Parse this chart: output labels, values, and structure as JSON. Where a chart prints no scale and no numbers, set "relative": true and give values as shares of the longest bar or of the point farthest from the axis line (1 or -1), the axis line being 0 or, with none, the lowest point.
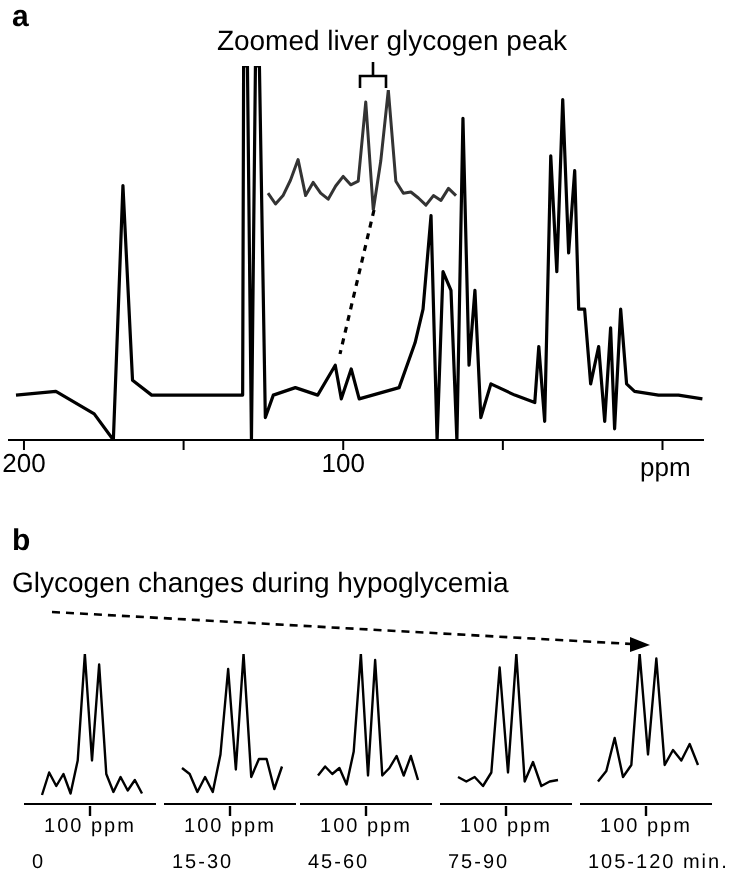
{
  "chart_data": [
    {
      "type": "line",
      "annotations": [
        "a"
      ],
      "relative": true,
      "color": "#000000",
      "xlabel": "ppm",
      "xlim": [
        205,
        -13
      ],
      "xticks": [
        200,
        {
          "value": 150,
          "label": null
        },
        100,
        {
          "value": 50,
          "label": null
        },
        {
          "value": 0,
          "label": null
        }
      ],
      "x": [
        202.5,
        190,
        178,
        172,
        169,
        166,
        160,
        145,
        131.5,
        131.2,
        130,
        128.75,
        127.5,
        126.25,
        124.4,
        121.9,
        115,
        108,
        102.5,
        100.6,
        97.5,
        95,
        82.5,
        77.5,
        75,
        72.5,
        70.6,
        68.75,
        66.25,
        64.4,
        62.5,
        60.6,
        58.75,
        56.9,
        53.75,
        46.25,
        40,
        38.75,
        36.9,
        35,
        33.1,
        31.25,
        29.4,
        27.5,
        26.25,
        24.4,
        22.5,
        20,
        18.1,
        16.25,
        15,
        13.1,
        11.25,
        8.75,
        1.25,
        -5,
        -12.5
      ],
      "values": [
        0.12,
        0.13,
        0.07,
        0,
        0.68,
        0.16,
        0.12,
        0.12,
        0.12,
        1,
        1,
        0,
        1,
        1,
        0.06,
        0.12,
        0.14,
        0.12,
        0.2,
        0.11,
        0.19,
        0.11,
        0.14,
        0.26,
        0.35,
        0.6,
        0,
        0.45,
        0.4,
        0,
        0.86,
        0.2,
        0.4,
        0.06,
        0.15,
        0.12,
        0.1,
        0.25,
        0.05,
        0.76,
        0.45,
        0.91,
        0.5,
        0.72,
        0.35,
        0.35,
        0.15,
        0.25,
        0.05,
        0.3,
        0.03,
        0.35,
        0.15,
        0.13,
        0.12,
        0.12,
        0.11
      ]
    },
    {
      "type": "line",
      "title": "Zoomed liver glycogen peak",
      "relative": true,
      "color": "#333333",
      "categories": [
        null,
        null,
        null,
        null,
        null,
        null,
        null,
        null,
        null,
        null,
        null,
        null,
        null,
        null,
        null,
        null,
        null,
        null,
        null,
        null,
        null,
        null,
        null,
        null,
        null,
        null
      ],
      "values": [
        0.14,
        0.05,
        0.12,
        0.25,
        0.42,
        0.12,
        0.23,
        0.14,
        0.09,
        0.2,
        0.28,
        0.21,
        0.24,
        0.9,
        0,
        0.41,
        1,
        0.24,
        0.14,
        0.15,
        0.1,
        0.04,
        0.12,
        0.08,
        0.18,
        0.12
      ]
    },
    {
      "type": "line",
      "title": "Glycogen changes during hypoglycemia",
      "annotations": [
        "b",
        "100 ppm"
      ],
      "relative": true,
      "color": "#000000",
      "xlabel": "0",
      "categories": [
        null,
        null,
        null,
        null,
        null,
        null,
        null,
        null,
        null,
        null,
        null,
        null,
        null,
        null,
        null
      ],
      "values": [
        0.06,
        0.21,
        0.12,
        0.2,
        0.07,
        0.29,
        1,
        0.29,
        0.93,
        0.2,
        0.08,
        0.18,
        0.09,
        0.16,
        0.07
      ]
    },
    {
      "type": "line",
      "annotations": [
        "100 ppm"
      ],
      "relative": true,
      "color": "#000000",
      "xlabel": "15-30",
      "categories": [
        null,
        null,
        null,
        null,
        null,
        null,
        null,
        null,
        null,
        null,
        null,
        null,
        null,
        null
      ],
      "values": [
        0.24,
        0.2,
        0.08,
        0.18,
        0.08,
        0.33,
        0.9,
        0.23,
        1,
        0.18,
        0.3,
        0.3,
        0.1,
        0.25
      ]
    },
    {
      "type": "line",
      "annotations": [
        "100 ppm"
      ],
      "relative": true,
      "color": "#000000",
      "xlabel": "45-60",
      "categories": [
        null,
        null,
        null,
        null,
        null,
        null,
        null,
        null,
        null,
        null,
        null,
        null,
        null,
        null,
        null
      ],
      "values": [
        0.19,
        0.25,
        0.2,
        0.24,
        0.13,
        0.35,
        1,
        0.19,
        0.96,
        0.19,
        0.24,
        0.32,
        0.19,
        0.32,
        0.16
      ]
    },
    {
      "type": "line",
      "annotations": [
        "100 ppm"
      ],
      "relative": true,
      "color": "#000000",
      "xlabel": "75-90",
      "categories": [
        null,
        null,
        null,
        null,
        null,
        null,
        null,
        null,
        null,
        null,
        null,
        null,
        null
      ],
      "values": [
        0.18,
        0.15,
        0.18,
        0.12,
        0.21,
        0.91,
        0.21,
        1,
        0.15,
        0.28,
        0.12,
        0.15,
        0.16
      ]
    },
    {
      "type": "line",
      "annotations": [
        "100 ppm"
      ],
      "relative": true,
      "color": "#000000",
      "xlabel": "105-120 min.",
      "categories": [
        null,
        null,
        null,
        null,
        null,
        null,
        null,
        null,
        null,
        null,
        null,
        null,
        null
      ],
      "values": [
        0.15,
        0.22,
        0.44,
        0.18,
        0.26,
        1,
        0.33,
        0.97,
        0.26,
        0.36,
        0.29,
        0.4,
        0.26
      ]
    }
  ]
}
